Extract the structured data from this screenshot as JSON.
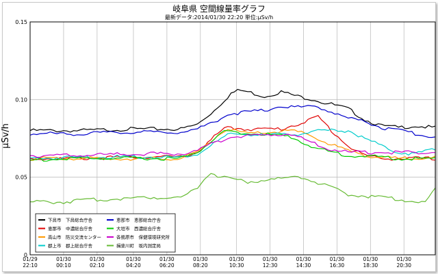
{
  "header": {
    "title": "岐阜県 空間線量率グラフ",
    "subtitle": "最新データ:2014/01/30 22:20  単位:μSv/h"
  },
  "chart_data": {
    "type": "line",
    "title": "岐阜県 空間線量率グラフ",
    "ylabel": "μSv/h",
    "xlabel": "",
    "ylim": [
      0,
      0.15
    ],
    "yticks": [
      "0",
      "0.05",
      "0.10",
      "0.15"
    ],
    "ytick_values": [
      0,
      0.05,
      0.1,
      0.15
    ],
    "xtick_labels": [
      [
        "01/29",
        "22:10"
      ],
      [
        "01/30",
        "00:10"
      ],
      [
        "01/30",
        "02:10"
      ],
      [
        "01/30",
        "04:20"
      ],
      [
        "01/30",
        "06:20"
      ],
      [
        "01/30",
        "08:20"
      ],
      [
        "01/30",
        "10:30"
      ],
      [
        "01/30",
        "12:30"
      ],
      [
        "01/30",
        "14:30"
      ],
      [
        "01/30",
        "16:30"
      ],
      [
        "01/30",
        "18:30"
      ],
      [
        "01/30",
        "20:30"
      ]
    ],
    "xtick_hours": [
      0,
      2,
      4,
      6.17,
      8.17,
      10.17,
      12.33,
      14.33,
      16.33,
      18.33,
      20.33,
      22.33
    ],
    "x_range_hours": [
      0,
      24.2
    ],
    "grid": true,
    "legend_position": "bottom-left",
    "series": [
      {
        "name": "下呂市　下呂総合庁舎",
        "color": "#000000",
        "points": [
          [
            0,
            0.08
          ],
          [
            3,
            0.08
          ],
          [
            6,
            0.081
          ],
          [
            9,
            0.081
          ],
          [
            10,
            0.084
          ],
          [
            11,
            0.093
          ],
          [
            12,
            0.104
          ],
          [
            12.5,
            0.106
          ],
          [
            13,
            0.105
          ],
          [
            14,
            0.102
          ],
          [
            15,
            0.105
          ],
          [
            16,
            0.102
          ],
          [
            17,
            0.1
          ],
          [
            17.5,
            0.098
          ],
          [
            18,
            0.097
          ],
          [
            19,
            0.094
          ],
          [
            20,
            0.087
          ],
          [
            21,
            0.083
          ],
          [
            22,
            0.082
          ],
          [
            23,
            0.083
          ],
          [
            24,
            0.082
          ],
          [
            24.2,
            0.082
          ]
        ]
      },
      {
        "name": "恵那市　中濃総合庁舎",
        "color": "#e00000",
        "points": [
          [
            0,
            0.062
          ],
          [
            3,
            0.062
          ],
          [
            6,
            0.063
          ],
          [
            9,
            0.063
          ],
          [
            10,
            0.066
          ],
          [
            11,
            0.076
          ],
          [
            11.7,
            0.082
          ],
          [
            13,
            0.081
          ],
          [
            15,
            0.081
          ],
          [
            16.5,
            0.086
          ],
          [
            17.2,
            0.089
          ],
          [
            18,
            0.08
          ],
          [
            19,
            0.07
          ],
          [
            20,
            0.064
          ],
          [
            21,
            0.062
          ],
          [
            22,
            0.062
          ],
          [
            24.2,
            0.062
          ]
        ]
      },
      {
        "name": "高山市　防災交流センター",
        "color": "#ff9900",
        "points": [
          [
            0,
            0.062
          ],
          [
            3,
            0.062
          ],
          [
            6,
            0.062
          ],
          [
            9,
            0.062
          ],
          [
            10,
            0.066
          ],
          [
            11,
            0.075
          ],
          [
            11.7,
            0.081
          ],
          [
            13,
            0.078
          ],
          [
            14.5,
            0.079
          ],
          [
            15.5,
            0.08
          ],
          [
            16.5,
            0.078
          ],
          [
            17.5,
            0.073
          ],
          [
            19,
            0.067
          ],
          [
            20.5,
            0.063
          ],
          [
            22,
            0.062
          ],
          [
            24.2,
            0.063
          ]
        ]
      },
      {
        "name": "郡上市　郡上総合庁舎",
        "color": "#00cccc",
        "points": [
          [
            0,
            0.062
          ],
          [
            3,
            0.063
          ],
          [
            6,
            0.063
          ],
          [
            9,
            0.063
          ],
          [
            10,
            0.065
          ],
          [
            11,
            0.072
          ],
          [
            12,
            0.078
          ],
          [
            14,
            0.077
          ],
          [
            16,
            0.078
          ],
          [
            17.5,
            0.08
          ],
          [
            19,
            0.08
          ],
          [
            20,
            0.075
          ],
          [
            21,
            0.07
          ],
          [
            22,
            0.066
          ],
          [
            23,
            0.065
          ],
          [
            24,
            0.068
          ],
          [
            24.2,
            0.068
          ]
        ]
      },
      {
        "name": "恵那市　恵那総合庁舎",
        "color": "#0000cc",
        "points": [
          [
            0,
            0.078
          ],
          [
            3,
            0.078
          ],
          [
            6,
            0.079
          ],
          [
            9,
            0.079
          ],
          [
            10,
            0.081
          ],
          [
            11,
            0.086
          ],
          [
            12,
            0.091
          ],
          [
            14,
            0.093
          ],
          [
            15,
            0.096
          ],
          [
            16,
            0.095
          ],
          [
            17,
            0.096
          ],
          [
            17.5,
            0.094
          ],
          [
            18,
            0.092
          ],
          [
            19,
            0.088
          ],
          [
            20,
            0.086
          ],
          [
            21,
            0.082
          ],
          [
            22,
            0.08
          ],
          [
            23,
            0.078
          ],
          [
            24.2,
            0.076
          ]
        ]
      },
      {
        "name": "大垣市　西濃総合庁舎",
        "color": "#00cc00",
        "points": [
          [
            0,
            0.061
          ],
          [
            3,
            0.062
          ],
          [
            6,
            0.062
          ],
          [
            9,
            0.062
          ],
          [
            10,
            0.066
          ],
          [
            11,
            0.075
          ],
          [
            11.7,
            0.08
          ],
          [
            13,
            0.078
          ],
          [
            15,
            0.077
          ],
          [
            16,
            0.074
          ],
          [
            17,
            0.069
          ],
          [
            18,
            0.066
          ],
          [
            19,
            0.064
          ],
          [
            21,
            0.063
          ],
          [
            22,
            0.062
          ],
          [
            24.2,
            0.062
          ]
        ]
      },
      {
        "name": "各務原市　保健環境研究所",
        "color": "#cc00cc",
        "points": [
          [
            0,
            0.064
          ],
          [
            3,
            0.064
          ],
          [
            6,
            0.065
          ],
          [
            9,
            0.065
          ],
          [
            10,
            0.067
          ],
          [
            11,
            0.072
          ],
          [
            12,
            0.076
          ],
          [
            14,
            0.077
          ],
          [
            15.5,
            0.078
          ],
          [
            16.5,
            0.074
          ],
          [
            17.5,
            0.069
          ],
          [
            19,
            0.066
          ],
          [
            21,
            0.066
          ],
          [
            22,
            0.066
          ],
          [
            24.2,
            0.066
          ]
        ]
      },
      {
        "name": "揖斐川町　坂内測定局",
        "color": "#66bb33",
        "points": [
          [
            0,
            0.034
          ],
          [
            2,
            0.034
          ],
          [
            3,
            0.035
          ],
          [
            5,
            0.036
          ],
          [
            7,
            0.037
          ],
          [
            9,
            0.037
          ],
          [
            10,
            0.043
          ],
          [
            10.7,
            0.053
          ],
          [
            11.5,
            0.05
          ],
          [
            12,
            0.049
          ],
          [
            13,
            0.047
          ],
          [
            14,
            0.048
          ],
          [
            15,
            0.049
          ],
          [
            16,
            0.051
          ],
          [
            17,
            0.047
          ],
          [
            18,
            0.043
          ],
          [
            19,
            0.039
          ],
          [
            20,
            0.038
          ],
          [
            21,
            0.037
          ],
          [
            22,
            0.036
          ],
          [
            23,
            0.034
          ],
          [
            23.7,
            0.034
          ],
          [
            24.2,
            0.043
          ]
        ]
      }
    ]
  },
  "colors": {
    "background": "#ffffff",
    "grid": "#bfbfbf",
    "axis": "#000000"
  }
}
